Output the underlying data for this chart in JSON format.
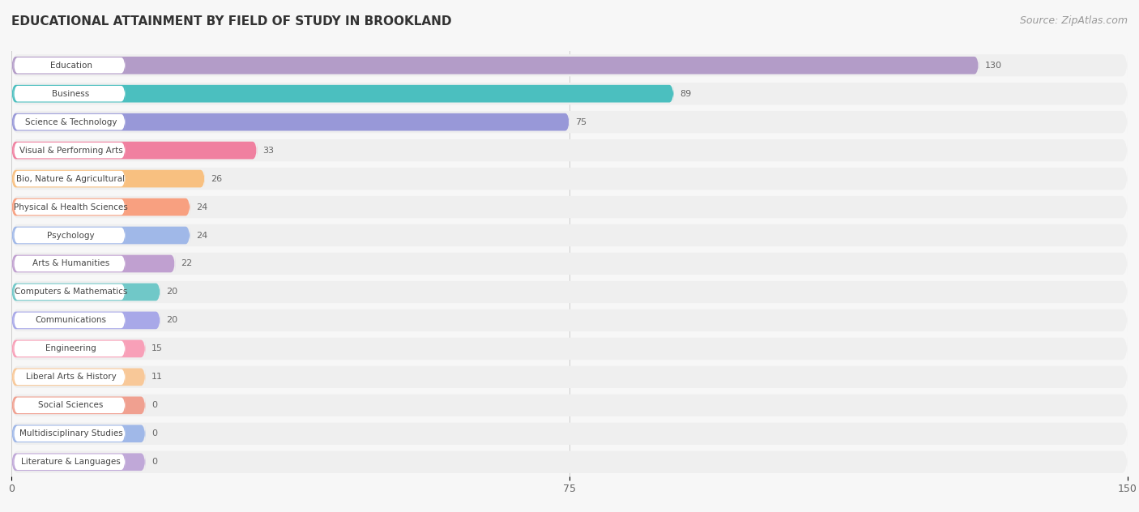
{
  "title": "EDUCATIONAL ATTAINMENT BY FIELD OF STUDY IN BROOKLAND",
  "source": "Source: ZipAtlas.com",
  "categories": [
    "Education",
    "Business",
    "Science & Technology",
    "Visual & Performing Arts",
    "Bio, Nature & Agricultural",
    "Physical & Health Sciences",
    "Psychology",
    "Arts & Humanities",
    "Computers & Mathematics",
    "Communications",
    "Engineering",
    "Liberal Arts & History",
    "Social Sciences",
    "Multidisciplinary Studies",
    "Literature & Languages"
  ],
  "values": [
    130,
    89,
    75,
    33,
    26,
    24,
    24,
    22,
    20,
    20,
    15,
    11,
    0,
    0,
    0
  ],
  "bar_colors": [
    "#b39cc8",
    "#4bbfbf",
    "#9898d8",
    "#f080a0",
    "#f8c080",
    "#f8a080",
    "#a0b8e8",
    "#c0a0d0",
    "#70c8c8",
    "#a8a8e8",
    "#f8a0b8",
    "#f8c898",
    "#f0a090",
    "#a0b8e8",
    "#c0a8d8"
  ],
  "xlim": [
    0,
    150
  ],
  "xticks": [
    0,
    75,
    150
  ],
  "row_bg_color": "#efefef",
  "bar_bg_color": "#f7f7f7",
  "title_fontsize": 11,
  "source_fontsize": 9,
  "label_text_color": "#444444",
  "value_text_color": "#666666"
}
